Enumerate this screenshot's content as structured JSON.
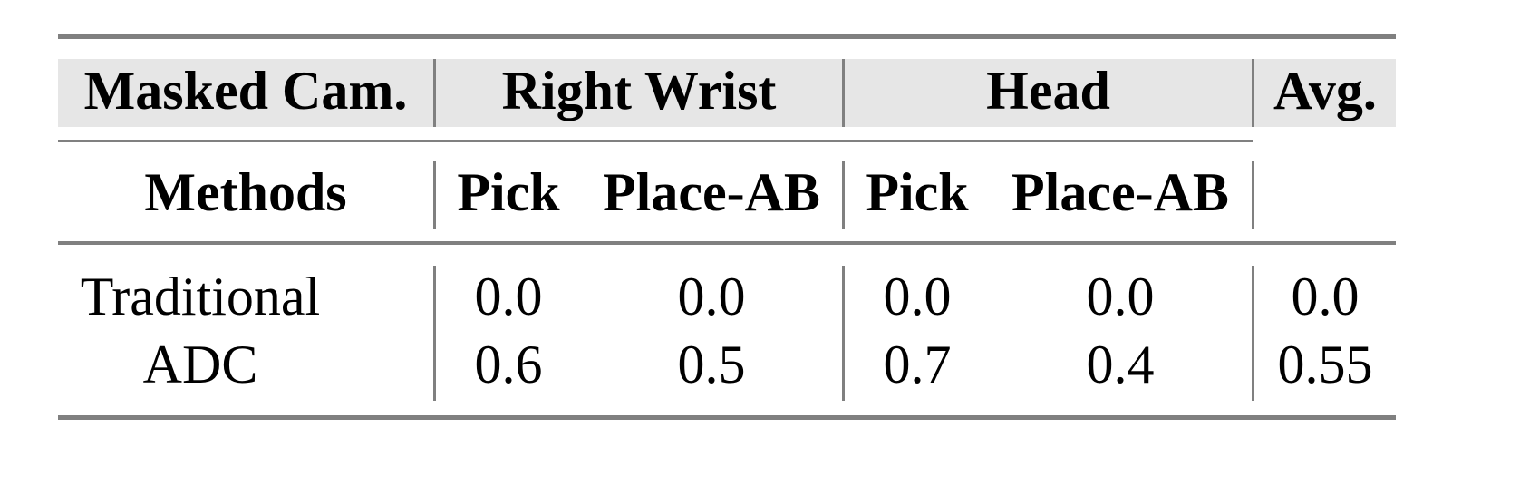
{
  "table": {
    "header_row": {
      "col0": "Masked Cam.",
      "groups": [
        "Right Wrist",
        "Head"
      ],
      "avg": "Avg."
    },
    "sub_header_row": {
      "col0": "Methods",
      "subcols": [
        "Pick",
        "Place-AB",
        "Pick",
        "Place-AB"
      ]
    },
    "rows": [
      {
        "method": "Traditional",
        "values": [
          "0.0",
          "0.0",
          "0.0",
          "0.0"
        ],
        "avg": "0.0"
      },
      {
        "method": "ADC",
        "values": [
          "0.6",
          "0.5",
          "0.7",
          "0.4"
        ],
        "avg": "0.55"
      }
    ],
    "colors": {
      "header_band": "#e6e6e6",
      "rules": "#808080"
    }
  }
}
